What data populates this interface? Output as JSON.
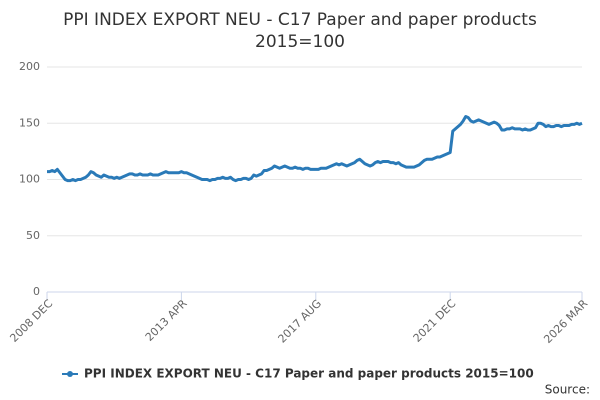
{
  "chart_data": {
    "type": "line",
    "title": [
      "PPI INDEX EXPORT NEU - C17 Paper and paper products",
      "2015=100"
    ],
    "source": "Source:",
    "categories": [
      "2008 DEC",
      null,
      null,
      null,
      null,
      null,
      null,
      null,
      null,
      null,
      null,
      null,
      null,
      null,
      null,
      null,
      null,
      null,
      null,
      null,
      null,
      null,
      null,
      null,
      null,
      null,
      null,
      null,
      null,
      null,
      null,
      null,
      null,
      null,
      null,
      null,
      null,
      null,
      null,
      null,
      null,
      null,
      null,
      null,
      null,
      null,
      null,
      null,
      null,
      null,
      null,
      null,
      "2013 APR",
      null,
      null,
      null,
      null,
      null,
      null,
      null,
      null,
      null,
      null,
      null,
      null,
      null,
      null,
      null,
      null,
      null,
      null,
      null,
      null,
      null,
      null,
      null,
      null,
      null,
      null,
      null,
      null,
      null,
      null,
      null,
      null,
      null,
      null,
      null,
      null,
      null,
      null,
      null,
      null,
      null,
      null,
      null,
      null,
      null,
      null,
      null,
      null,
      null,
      null,
      null,
      "2017 AUG",
      null,
      null,
      null,
      null,
      null,
      null,
      null,
      null,
      null,
      null,
      null,
      null,
      null,
      null,
      null,
      null,
      null,
      null,
      null,
      null,
      null,
      null,
      null,
      null,
      null,
      null,
      null,
      null,
      null,
      null,
      null,
      null,
      null,
      null,
      null,
      null,
      null,
      null,
      null,
      null,
      null,
      null,
      null,
      null,
      null,
      null,
      null,
      null,
      null,
      null,
      null,
      "2021 DEC",
      null,
      null,
      null,
      null,
      null,
      null,
      null,
      null,
      null,
      null,
      null,
      null,
      null,
      null,
      null,
      null,
      null,
      null,
      null,
      null,
      null,
      null,
      null,
      null,
      null,
      null,
      null,
      null,
      null,
      null,
      null,
      null,
      null,
      null,
      null,
      null,
      null,
      null,
      null,
      null,
      null,
      null,
      null,
      null,
      null,
      null,
      null,
      null,
      null,
      null,
      "2026 MAR"
    ],
    "series": [
      {
        "name": "PPI INDEX EXPORT NEU - C17 Paper and paper products 2015=100",
        "color": "#2a7ab8",
        "values": [
          107,
          107,
          108,
          107,
          109,
          106,
          103,
          100,
          99,
          99,
          100,
          99,
          100,
          100,
          101,
          102,
          104,
          107,
          106,
          104,
          103,
          102,
          104,
          103,
          102,
          102,
          101,
          102,
          101,
          102,
          103,
          104,
          105,
          105,
          104,
          104,
          105,
          104,
          104,
          104,
          105,
          104,
          104,
          104,
          105,
          106,
          107,
          106,
          106,
          106,
          106,
          106,
          107,
          106,
          106,
          105,
          104,
          103,
          102,
          101,
          100,
          100,
          100,
          99,
          100,
          100,
          101,
          101,
          102,
          101,
          101,
          102,
          100,
          99,
          100,
          100,
          101,
          101,
          100,
          101,
          104,
          103,
          104,
          105,
          108,
          108,
          109,
          110,
          112,
          111,
          110,
          111,
          112,
          111,
          110,
          110,
          111,
          110,
          110,
          109,
          110,
          110,
          109,
          109,
          109,
          109,
          110,
          110,
          110,
          111,
          112,
          113,
          114,
          113,
          114,
          113,
          112,
          113,
          114,
          115,
          117,
          118,
          116,
          114,
          113,
          112,
          113,
          115,
          116,
          115,
          116,
          116,
          116,
          115,
          115,
          114,
          115,
          113,
          112,
          111,
          111,
          111,
          111,
          112,
          113,
          115,
          117,
          118,
          118,
          118,
          119,
          120,
          120,
          121,
          122,
          123,
          124,
          143,
          145,
          147,
          149,
          152,
          156,
          155,
          152,
          151,
          152,
          153,
          152,
          151,
          150,
          149,
          150,
          151,
          150,
          148,
          144,
          144,
          145,
          145,
          146,
          145,
          145,
          145,
          144,
          145,
          144,
          144,
          145,
          146,
          150,
          150,
          149,
          147,
          148,
          147,
          147,
          148,
          148,
          147,
          148,
          148,
          148,
          149,
          149,
          150,
          149,
          150
        ]
      }
    ],
    "ylim": [
      0,
      200
    ],
    "yticks": [
      0,
      50,
      100,
      150,
      200
    ],
    "grid": true
  }
}
